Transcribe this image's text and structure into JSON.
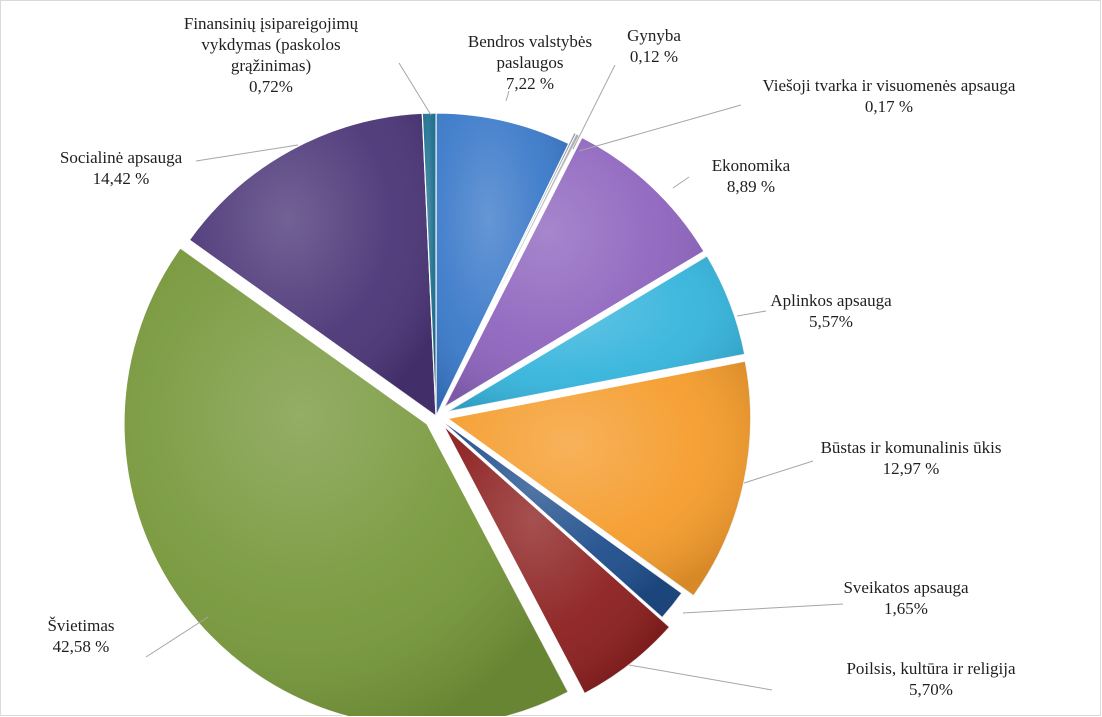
{
  "chart_data": {
    "type": "pie",
    "start_angle_deg": 0,
    "direction": "clockwise",
    "slices": [
      {
        "lines": [
          "Bendros valstybės",
          "paslaugos",
          "7,22 %"
        ],
        "value": 7.22,
        "color": "#3a79c9",
        "exploded": false
      },
      {
        "lines": [
          "Gynyba",
          "0,12 %"
        ],
        "value": 0.12,
        "color": "#9aa0a6",
        "exploded": true
      },
      {
        "lines": [
          "Viešoji tvarka ir visuomenės apsauga",
          "0,17 %"
        ],
        "value": 0.17,
        "color": "#b8bcc2",
        "exploded": true
      },
      {
        "lines": [
          "Ekonomika",
          "8,89 %"
        ],
        "value": 8.89,
        "color": "#8e64be",
        "exploded": true
      },
      {
        "lines": [
          "Aplinkos apsauga",
          "5,57%"
        ],
        "value": 5.57,
        "color": "#35b4dc",
        "exploded": true
      },
      {
        "lines": [
          "Būstas ir komunalinis ūkis",
          "12,97 %"
        ],
        "value": 12.97,
        "color": "#f59c2c",
        "exploded": true
      },
      {
        "lines": [
          "Sveikatos apsauga",
          "1,65%"
        ],
        "value": 1.65,
        "color": "#1f4e8c",
        "exploded": false
      },
      {
        "lines": [
          "Poilsis, kultūra ir religija",
          "5,70%"
        ],
        "value": 5.7,
        "color": "#8c1f1f",
        "exploded": true
      },
      {
        "lines": [
          "Švietimas",
          "42,58 %"
        ],
        "value": 42.58,
        "color": "#76973a",
        "exploded": true
      },
      {
        "lines": [
          "Socialinė apsauga",
          "14,42 %"
        ],
        "value": 14.42,
        "color": "#4b3577",
        "exploded": false
      },
      {
        "lines": [
          "Finansinių įsipareigojimų",
          "vykdymas (paskolos",
          "grąžinimas)",
          "0,72%"
        ],
        "value": 0.72,
        "color": "#1b6e8f",
        "exploded": false
      }
    ]
  }
}
